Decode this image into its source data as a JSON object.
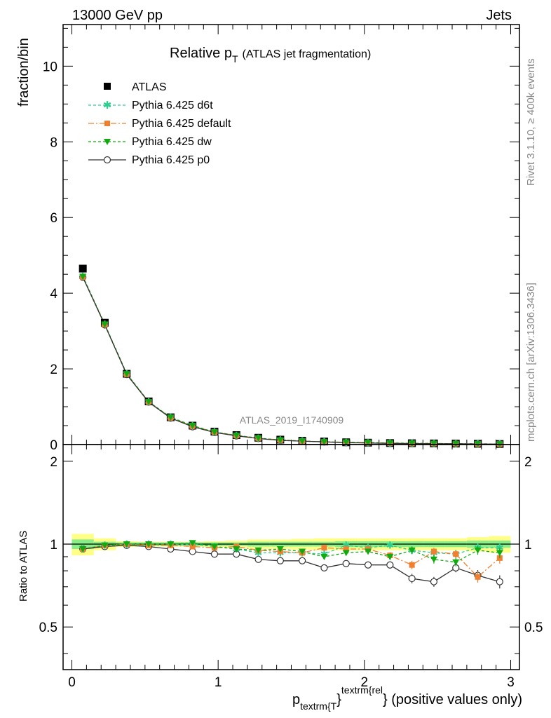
{
  "header": {
    "left": "13000 GeV pp",
    "right": "Jets"
  },
  "side_labels": {
    "rivet": "Rivet 3.1.10, ≥ 400k events",
    "mcplots": "mcplots.cern.ch [arXiv:1306.3436]"
  },
  "watermark": "ATLAS_2019_I1740909",
  "colors": {
    "atlas": "#000000",
    "d6t": "#2ecc8f",
    "default": "#f08030",
    "dw": "#11aa11",
    "p0": "#333333",
    "band_inner": "#88ee88",
    "band_outer": "#ffff88"
  },
  "chart_data": [
    {
      "type": "line",
      "panel": "main",
      "title_main": "Relative p",
      "title_sub": "T",
      "title_paren": "(ATLAS jet fragmentation)",
      "ylabel": "fraction/bin",
      "ylim": [
        0,
        11.1
      ],
      "xlim": [
        -0.06,
        3.06
      ],
      "yticks": [
        0,
        2,
        4,
        6,
        8,
        10
      ],
      "legend_position": "top-left",
      "x": [
        0.075,
        0.225,
        0.375,
        0.525,
        0.675,
        0.825,
        0.975,
        1.125,
        1.275,
        1.425,
        1.575,
        1.725,
        1.875,
        2.025,
        2.175,
        2.325,
        2.475,
        2.625,
        2.775,
        2.925
      ],
      "series": [
        {
          "key": "atlas",
          "name": "ATLAS",
          "values": [
            4.65,
            3.22,
            1.87,
            1.14,
            0.72,
            0.5,
            0.34,
            0.25,
            0.18,
            0.13,
            0.1,
            0.08,
            0.06,
            0.05,
            0.04,
            0.035,
            0.03,
            0.025,
            0.02,
            0.015
          ]
        },
        {
          "key": "d6t",
          "name": "Pythia 6.425 d6t",
          "values": [
            4.45,
            3.18,
            1.87,
            1.13,
            0.72,
            0.5,
            0.33,
            0.24,
            0.17,
            0.12,
            0.09,
            0.07,
            0.06,
            0.05,
            0.04,
            0.033,
            0.028,
            0.023,
            0.019,
            0.014
          ]
        },
        {
          "key": "default",
          "name": "Pythia 6.425 default",
          "values": [
            4.43,
            3.17,
            1.86,
            1.13,
            0.71,
            0.49,
            0.33,
            0.24,
            0.17,
            0.12,
            0.09,
            0.07,
            0.06,
            0.05,
            0.04,
            0.03,
            0.028,
            0.023,
            0.016,
            0.013
          ]
        },
        {
          "key": "dw",
          "name": "Pythia 6.425 dw",
          "values": [
            4.44,
            3.18,
            1.87,
            1.13,
            0.72,
            0.5,
            0.33,
            0.24,
            0.17,
            0.12,
            0.09,
            0.07,
            0.06,
            0.05,
            0.04,
            0.033,
            0.027,
            0.022,
            0.019,
            0.014
          ]
        },
        {
          "key": "p0",
          "name": "Pythia 6.425 p0",
          "values": [
            4.42,
            3.16,
            1.85,
            1.12,
            0.7,
            0.47,
            0.32,
            0.23,
            0.16,
            0.11,
            0.09,
            0.07,
            0.05,
            0.04,
            0.03,
            0.026,
            0.022,
            0.02,
            0.015,
            0.011
          ]
        }
      ]
    },
    {
      "type": "line",
      "panel": "ratio",
      "ylabel": "Ratio to ATLAS",
      "xlabel_main": "p",
      "xlabel_sub": "textrm{T",
      "xlabel_sup": "textrm{rel",
      "xlabel_close": "}",
      "xlabel_rest": "} (positive values only)",
      "ylim": [
        0.35,
        2.3
      ],
      "xlim": [
        -0.06,
        3.06
      ],
      "yticks": [
        0.5,
        1,
        2
      ],
      "ytick_labels": [
        "0.5",
        "1",
        "2"
      ],
      "xticks": [
        0,
        1,
        2,
        3
      ],
      "xtick_labels": [
        "0",
        "1",
        "2",
        "3"
      ],
      "x": [
        0.075,
        0.225,
        0.375,
        0.525,
        0.675,
        0.825,
        0.975,
        1.125,
        1.275,
        1.425,
        1.575,
        1.725,
        1.875,
        2.025,
        2.175,
        2.325,
        2.475,
        2.625,
        2.775,
        2.925
      ],
      "band_inner_halfwidth": [
        0.04,
        0.02,
        0.015,
        0.015,
        0.015,
        0.015,
        0.015,
        0.015,
        0.02,
        0.02,
        0.02,
        0.02,
        0.025,
        0.025,
        0.025,
        0.025,
        0.025,
        0.025,
        0.03,
        0.03
      ],
      "band_outer_halfwidth": [
        0.09,
        0.05,
        0.025,
        0.02,
        0.02,
        0.02,
        0.025,
        0.03,
        0.04,
        0.04,
        0.045,
        0.05,
        0.05,
        0.05,
        0.05,
        0.05,
        0.05,
        0.05,
        0.06,
        0.07
      ],
      "series": [
        {
          "key": "d6t",
          "values": [
            0.96,
            0.99,
            1.0,
            1.0,
            1.0,
            1.0,
            0.98,
            0.96,
            0.93,
            0.93,
            0.93,
            0.92,
            0.99,
            0.97,
            0.99,
            0.95,
            0.93,
            0.92,
            0.97,
            0.97
          ],
          "errors": [
            0.01,
            0.01,
            0.01,
            0.01,
            0.01,
            0.01,
            0.01,
            0.01,
            0.01,
            0.015,
            0.015,
            0.02,
            0.02,
            0.02,
            0.025,
            0.03,
            0.03,
            0.03,
            0.035,
            0.04
          ]
        },
        {
          "key": "default",
          "values": [
            0.96,
            0.99,
            1.0,
            0.99,
            0.99,
            0.98,
            0.97,
            0.98,
            0.95,
            0.94,
            0.93,
            0.97,
            0.96,
            0.96,
            0.91,
            0.84,
            0.94,
            0.92,
            0.76,
            0.89
          ],
          "errors": [
            0.01,
            0.01,
            0.01,
            0.01,
            0.01,
            0.01,
            0.01,
            0.01,
            0.01,
            0.015,
            0.015,
            0.02,
            0.02,
            0.02,
            0.025,
            0.03,
            0.03,
            0.03,
            0.035,
            0.04
          ]
        },
        {
          "key": "dw",
          "values": [
            0.96,
            0.99,
            1.0,
            1.0,
            1.0,
            1.01,
            0.98,
            0.96,
            0.95,
            0.96,
            0.94,
            0.9,
            0.93,
            0.94,
            0.9,
            0.95,
            0.88,
            0.86,
            0.95,
            0.93
          ],
          "errors": [
            0.01,
            0.01,
            0.01,
            0.01,
            0.01,
            0.01,
            0.01,
            0.01,
            0.01,
            0.015,
            0.015,
            0.02,
            0.02,
            0.02,
            0.025,
            0.03,
            0.03,
            0.03,
            0.035,
            0.04
          ]
        },
        {
          "key": "p0",
          "values": [
            0.96,
            0.98,
            0.99,
            0.98,
            0.96,
            0.94,
            0.92,
            0.92,
            0.88,
            0.87,
            0.87,
            0.82,
            0.85,
            0.84,
            0.84,
            0.75,
            0.73,
            0.82,
            0.77,
            0.73
          ],
          "errors": [
            0.01,
            0.01,
            0.01,
            0.01,
            0.01,
            0.01,
            0.01,
            0.01,
            0.01,
            0.015,
            0.015,
            0.02,
            0.02,
            0.02,
            0.025,
            0.03,
            0.03,
            0.03,
            0.035,
            0.04
          ]
        }
      ]
    }
  ]
}
